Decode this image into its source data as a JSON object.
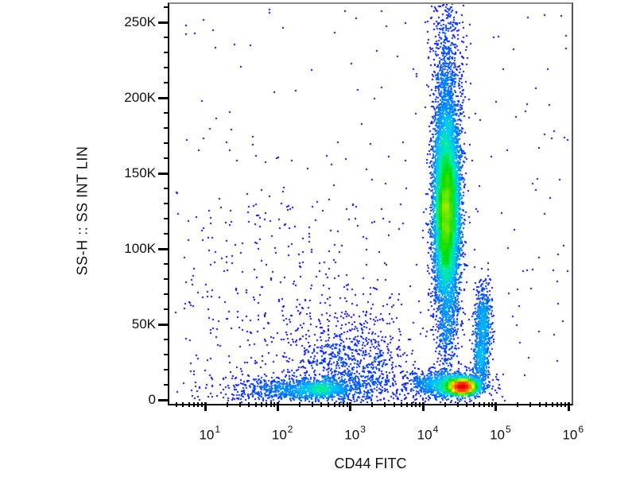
{
  "chart_data": {
    "type": "scatter",
    "subtype": "flow-cytometry-pseudocolor-density",
    "title": "",
    "xlabel": "CD44 FITC",
    "ylabel": "SS-H :: SS INT LIN",
    "x_scale": "log",
    "x_range_log10": [
      0.51,
      6.04
    ],
    "x_tick_exponents": [
      1,
      2,
      3,
      4,
      5,
      6
    ],
    "x_tick_base": "10",
    "x_minor_mantissas": [
      2,
      3,
      4,
      5,
      6,
      7,
      8,
      9
    ],
    "y_scale": "linear",
    "y_range": [
      0,
      262000
    ],
    "y_major_ticks": [
      {
        "value": 0,
        "label": "0"
      },
      {
        "value": 50000,
        "label": "50K"
      },
      {
        "value": 100000,
        "label": "100K"
      },
      {
        "value": 150000,
        "label": "150K"
      },
      {
        "value": 200000,
        "label": "200K"
      },
      {
        "value": 250000,
        "label": "250K"
      }
    ],
    "y_minor_step": 10000,
    "grid": false,
    "legend": "none",
    "dot_size_px": 2,
    "density_colormap": [
      [
        0.0,
        "#000080"
      ],
      [
        0.12,
        "#0000FF"
      ],
      [
        0.25,
        "#0070FF"
      ],
      [
        0.36,
        "#00C0FF"
      ],
      [
        0.46,
        "#00F0A0"
      ],
      [
        0.55,
        "#00DC00"
      ],
      [
        0.63,
        "#7CE600"
      ],
      [
        0.7,
        "#FFFF00"
      ],
      [
        0.8,
        "#FF9600"
      ],
      [
        0.9,
        "#FF3200"
      ],
      [
        1.0,
        "#E60000"
      ]
    ],
    "clusters": [
      {
        "name": "main-plume-core",
        "n": 9000,
        "cx_log10": 4.33,
        "sx_log10": 0.085,
        "cy": 125000,
        "sy": 30000
      },
      {
        "name": "main-plume-upper",
        "n": 900,
        "cx_log10": 4.33,
        "sx_log10": 0.1,
        "cy": 195000,
        "sy": 30000
      },
      {
        "name": "main-plume-top",
        "n": 150,
        "cx_log10": 4.34,
        "sx_log10": 0.12,
        "cy": 243000,
        "sy": 16000
      },
      {
        "name": "main-plume-neck",
        "n": 400,
        "cx_log10": 4.36,
        "sx_log10": 0.08,
        "cy": 50000,
        "sy": 20000
      },
      {
        "name": "right-mid-cluster",
        "n": 600,
        "cx_log10": 4.83,
        "sx_log10": 0.06,
        "cy": 52000,
        "sy": 14000
      },
      {
        "name": "right-connector",
        "n": 350,
        "cx_log10": 4.8,
        "sx_log10": 0.05,
        "cy": 27000,
        "sy": 9000
      },
      {
        "name": "bottom-left-broad",
        "n": 900,
        "cx_log10": 2.35,
        "sx_log10": 0.55,
        "cy": 7000,
        "sy": 4000
      },
      {
        "name": "bottom-left-core",
        "n": 500,
        "cx_log10": 2.58,
        "sx_log10": 0.22,
        "cy": 7500,
        "sy": 2800
      },
      {
        "name": "bottom-left-hot",
        "n": 80,
        "cx_log10": 2.62,
        "sx_log10": 0.08,
        "cy": 7500,
        "sy": 1800
      },
      {
        "name": "bottom-right-broad",
        "n": 800,
        "cx_log10": 4.3,
        "sx_log10": 0.3,
        "cy": 11000,
        "sy": 5000
      },
      {
        "name": "bottom-right-mid",
        "n": 800,
        "cx_log10": 4.45,
        "sx_log10": 0.18,
        "cy": 10000,
        "sy": 3500
      },
      {
        "name": "bottom-right-core",
        "n": 2400,
        "cx_log10": 4.55,
        "sx_log10": 0.09,
        "cy": 9000,
        "sy": 2200
      },
      {
        "name": "debris-smear",
        "n": 700,
        "cx_log10": 3.0,
        "sx_log10": 0.35,
        "cy": 22000,
        "sy": 15000
      },
      {
        "name": "debris-smear-sparse",
        "n": 300,
        "cx_log10": 2.6,
        "sx_log10": 0.7,
        "cy": 40000,
        "sy": 25000
      }
    ],
    "uniform_fields": [
      {
        "name": "background-noise",
        "n": 260,
        "x_log10": [
          0.6,
          6.0
        ],
        "y": [
          0,
          260000
        ]
      },
      {
        "name": "background-left-noise",
        "n": 250,
        "x_log10": [
          0.7,
          3.6
        ],
        "y": [
          0,
          130000
        ]
      },
      {
        "name": "plume-column-noise",
        "n": 120,
        "x_log10": [
          4.1,
          4.6
        ],
        "y": [
          0,
          262000
        ]
      }
    ]
  }
}
